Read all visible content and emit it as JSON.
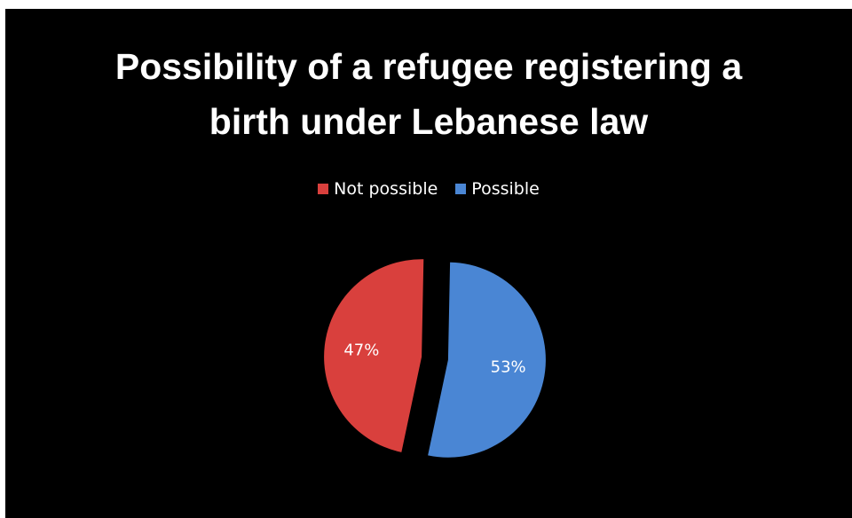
{
  "chart_data": {
    "type": "pie",
    "title": "Possibility of a refugee registering a birth under Lebanese law",
    "title_lines": [
      "Possibility of a refugee registering a",
      "birth under Lebanese law"
    ],
    "categories": [
      "Not possible",
      "Possible"
    ],
    "values": [
      47,
      53
    ],
    "labels": [
      "47%",
      "53%"
    ],
    "colors": [
      "#d9403d",
      "#4a86d4"
    ],
    "legend_position": "top",
    "exploded": true
  }
}
